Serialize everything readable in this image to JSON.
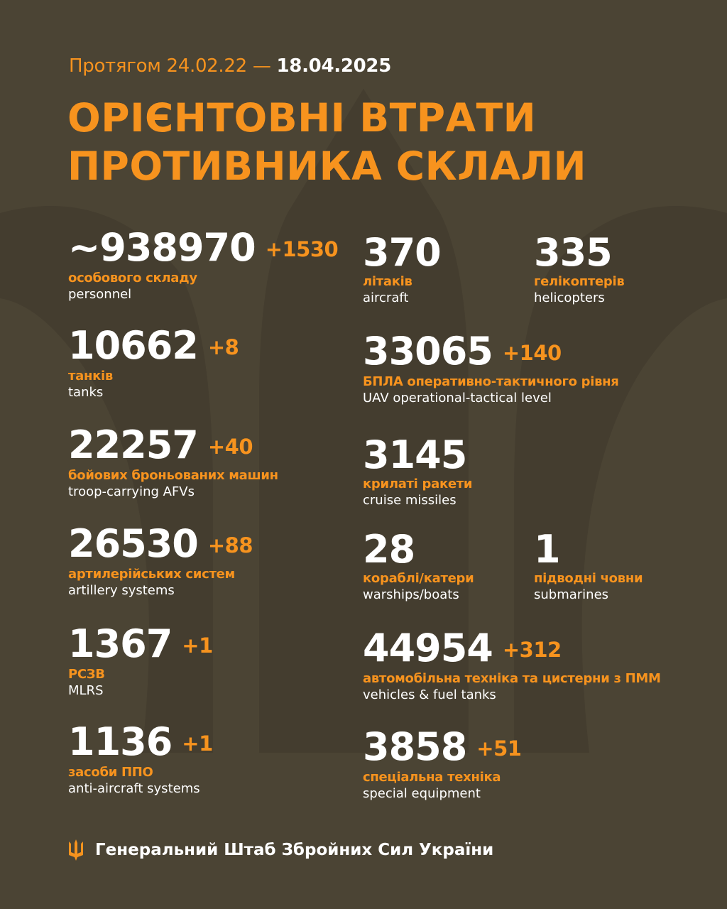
{
  "header": {
    "period_prefix": "Протягом 24.02.22 —",
    "period_end": "18.04.2025",
    "title_line1": "ОРІЄНТОВНІ ВТРАТИ",
    "title_line2": "ПРОТИВНИКА СКЛАЛИ"
  },
  "colors": {
    "background": "#4b4434",
    "accent": "#f7931e",
    "text": "#ffffff"
  },
  "left": [
    {
      "value": "~938970",
      "delta": "+1530",
      "ua": "особового складу",
      "en": "personnel"
    },
    {
      "value": "10662",
      "delta": "+8",
      "ua": "танків",
      "en": "tanks"
    },
    {
      "value": "22257",
      "delta": "+40",
      "ua": "бойових броньованих машин",
      "en": "troop-carrying AFVs"
    },
    {
      "value": "26530",
      "delta": "+88",
      "ua": "артилерійських систем",
      "en": "artillery systems"
    },
    {
      "value": "1367",
      "delta": "+1",
      "ua": "РСЗВ",
      "en": "MLRS"
    },
    {
      "value": "1136",
      "delta": "+1",
      "ua": "засоби ППО",
      "en": "anti-aircraft systems"
    }
  ],
  "right": [
    {
      "value": "370",
      "delta": "",
      "ua": "літаків",
      "en": "aircraft"
    },
    {
      "value": "335",
      "delta": "",
      "ua": "гелікоптерів",
      "en": "helicopters"
    },
    {
      "value": "33065",
      "delta": "+140",
      "ua": "БПЛА оперативно-тактичного рівня",
      "en": "UAV operational-tactical level"
    },
    {
      "value": "3145",
      "delta": "",
      "ua": "крилаті ракети",
      "en": "cruise missiles"
    },
    {
      "value": "28",
      "delta": "",
      "ua": "кораблі/катери",
      "en": "warships/boats"
    },
    {
      "value": "1",
      "delta": "",
      "ua": "підводні човни",
      "en": "submarines"
    },
    {
      "value": "44954",
      "delta": "+312",
      "ua": "автомобільна техніка та цистерни з ПММ",
      "en": "vehicles & fuel tanks"
    },
    {
      "value": "3858",
      "delta": "+51",
      "ua": "спеціальна техніка",
      "en": "special equipment"
    }
  ],
  "footer": {
    "icon": "trident-icon",
    "org": "Генеральний Штаб Збройних Сил України"
  }
}
